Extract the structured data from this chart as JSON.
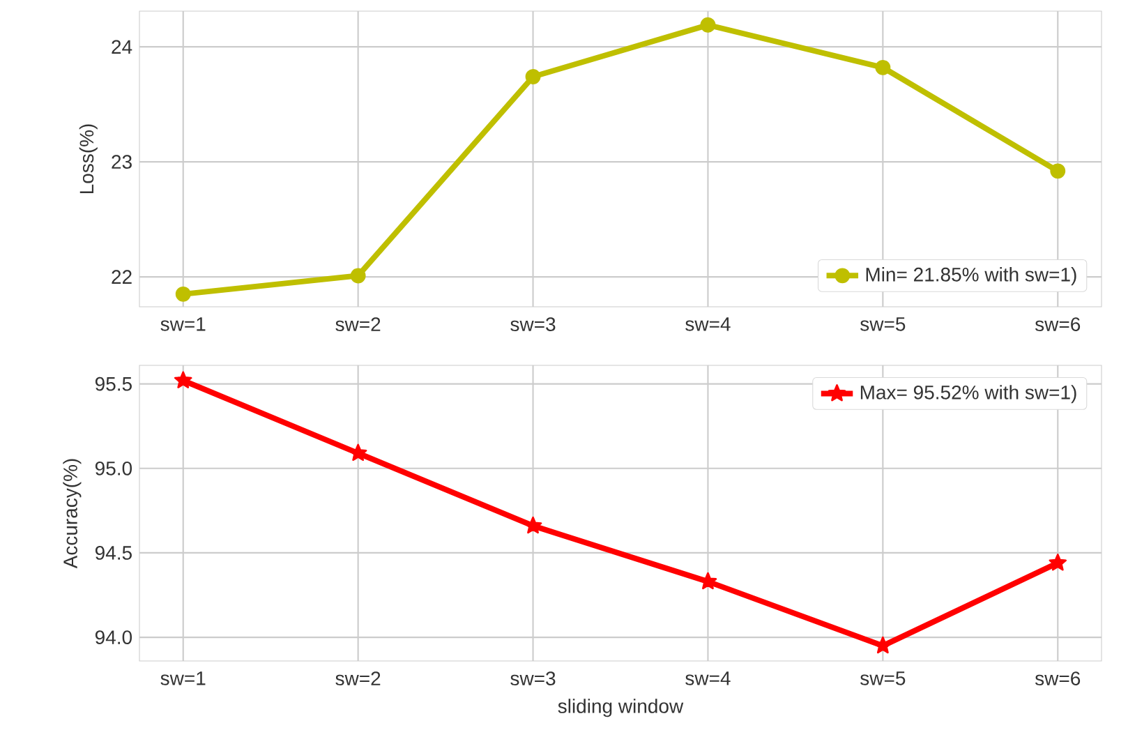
{
  "chart_data": [
    {
      "type": "line",
      "ylabel": "Loss(%)",
      "categories": [
        "sw=1",
        "sw=2",
        "sw=3",
        "sw=4",
        "sw=5",
        "sw=6"
      ],
      "series": [
        {
          "name": "Min= 21.85% with sw=1)",
          "color": "#bfbf00",
          "values": [
            21.85,
            22.01,
            23.74,
            24.19,
            23.82,
            22.92
          ]
        }
      ],
      "ylim": [
        21.74,
        24.31
      ],
      "yticks": [
        22,
        23,
        24
      ],
      "grid": true,
      "legend": "bottom right",
      "marker": "circle",
      "line_style": "solid"
    },
    {
      "type": "line",
      "xlabel": "sliding window",
      "ylabel": "Accuracy(%)",
      "categories": [
        "sw=1",
        "sw=2",
        "sw=3",
        "sw=4",
        "sw=5",
        "sw=6"
      ],
      "series": [
        {
          "name": "Max= 95.52% with sw=1)",
          "color": "#ff0000",
          "values": [
            95.52,
            95.09,
            94.66,
            94.33,
            93.95,
            94.44
          ]
        }
      ],
      "ylim": [
        93.86,
        95.61
      ],
      "yticks": [
        {
          "value": 94,
          "label": "94.0"
        },
        94.5,
        {
          "value": 95,
          "label": "95.0"
        },
        95.5
      ],
      "grid": true,
      "legend": "top right",
      "marker": "star",
      "line_style": "solid"
    }
  ]
}
